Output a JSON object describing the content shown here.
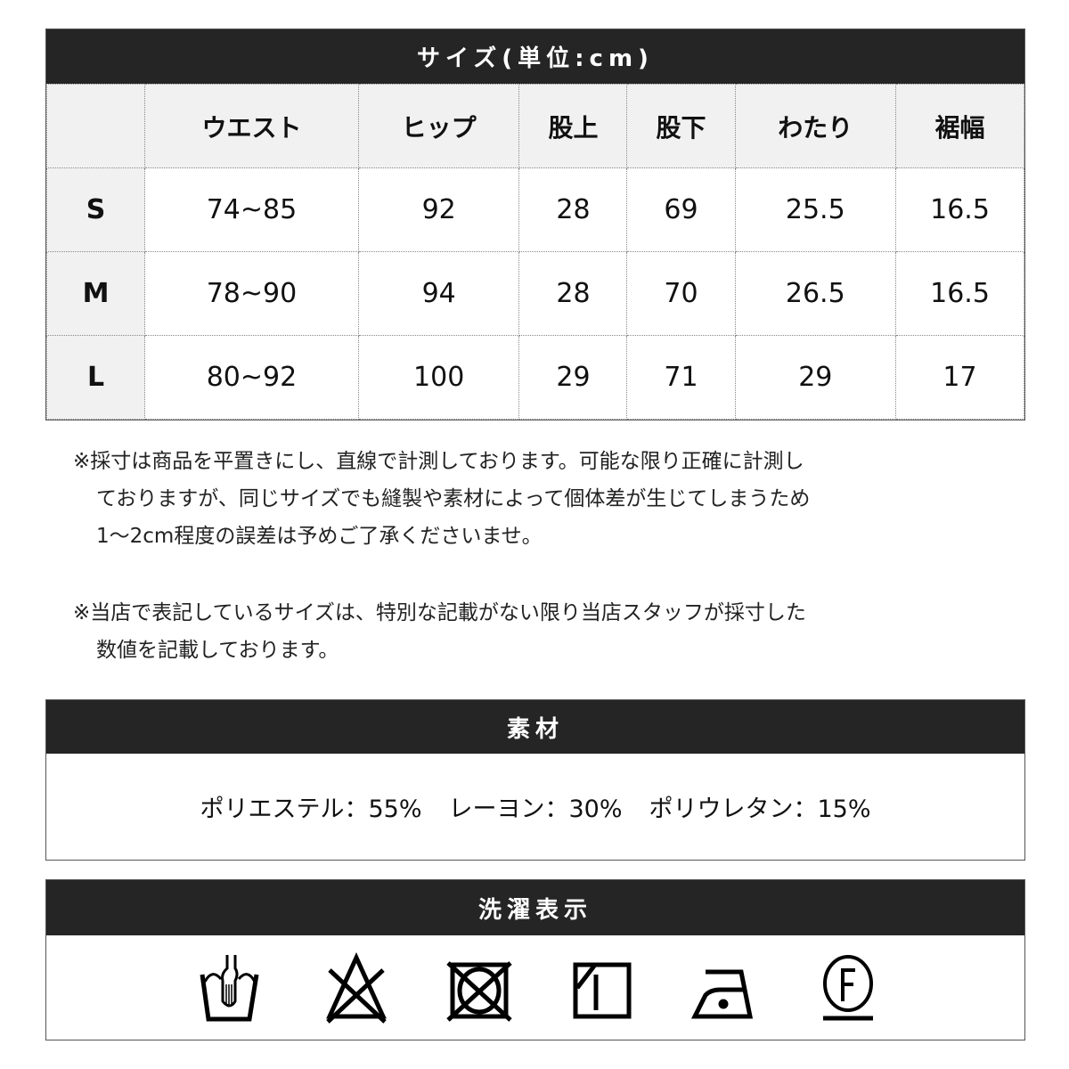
{
  "size_table": {
    "title": "サイズ(単位:cm)",
    "columns": [
      "",
      "ウエスト",
      "ヒップ",
      "股上",
      "股下",
      "わたり",
      "裾幅"
    ],
    "rows": [
      {
        "size": "S",
        "values": [
          "74~85",
          "92",
          "28",
          "69",
          "25.5",
          "16.5"
        ]
      },
      {
        "size": "M",
        "values": [
          "78~90",
          "94",
          "28",
          "70",
          "26.5",
          "16.5"
        ]
      },
      {
        "size": "L",
        "values": [
          "80~92",
          "100",
          "29",
          "71",
          "29",
          "17"
        ]
      }
    ]
  },
  "notes": {
    "note1": [
      "※採寸は商品を平置きにし、直線で計測しております。可能な限り正確に計測し",
      "ておりますが、同じサイズでも縫製や素材によって個体差が生じてしまうため",
      "1～2cm程度の誤差は予めご了承くださいませ。"
    ],
    "note2": [
      "※当店で表記しているサイズは、特別な記載がない限り当店スタッフが採寸した",
      "数値を記載しております。"
    ]
  },
  "material": {
    "title": "素材",
    "items": [
      "ポリエステル：55%",
      "レーヨン：30%",
      "ポリウレタン：15%"
    ]
  },
  "care": {
    "title": "洗濯表示",
    "icons": [
      "hand-wash-icon",
      "no-bleach-icon",
      "no-tumble-dry-icon",
      "line-dry-shade-icon",
      "iron-low-icon",
      "dry-clean-f-icon"
    ]
  }
}
